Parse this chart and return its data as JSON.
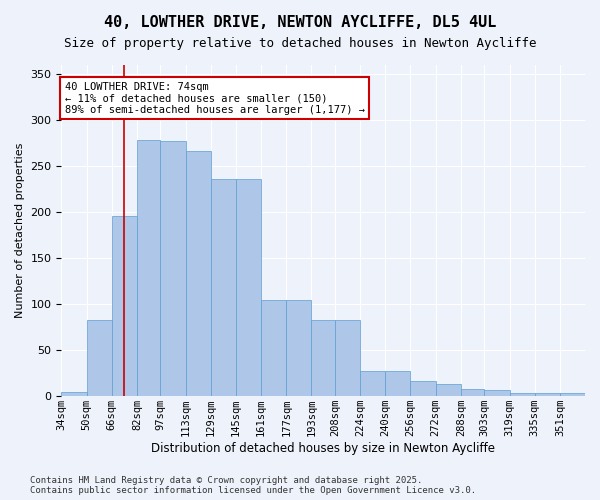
{
  "title_line1": "40, LOWTHER DRIVE, NEWTON AYCLIFFE, DL5 4UL",
  "title_line2": "Size of property relative to detached houses in Newton Aycliffe",
  "xlabel": "Distribution of detached houses by size in Newton Aycliffe",
  "ylabel": "Number of detached properties",
  "categories": [
    "34sqm",
    "50sqm",
    "66sqm",
    "82sqm",
    "97sqm",
    "113sqm",
    "129sqm",
    "145sqm",
    "161sqm",
    "177sqm",
    "193sqm",
    "208sqm",
    "224sqm",
    "240sqm",
    "256sqm",
    "272sqm",
    "288sqm",
    "303sqm",
    "319sqm",
    "335sqm",
    "351sqm"
  ],
  "bar_values": [
    5,
    83,
    196,
    278,
    277,
    267,
    236,
    236,
    104,
    104,
    83,
    83,
    27,
    27,
    16,
    13,
    8,
    7,
    3,
    3,
    3
  ],
  "bar_color": "#aec6e8",
  "bar_edge_color": "#5a9fd4",
  "vline_x": 74,
  "vline_color": "#cc0000",
  "box_text": "40 LOWTHER DRIVE: 74sqm\n← 11% of detached houses are smaller (150)\n89% of semi-detached houses are larger (1,177) →",
  "footer": "Contains HM Land Registry data © Crown copyright and database right 2025.\nContains public sector information licensed under the Open Government Licence v3.0.",
  "bg_color": "#eef2fb",
  "ylim": [
    0,
    360
  ],
  "yticks": [
    0,
    50,
    100,
    150,
    200,
    250,
    300,
    350
  ],
  "bin_edges": [
    34,
    50,
    66,
    82,
    97,
    113,
    129,
    145,
    161,
    177,
    193,
    208,
    224,
    240,
    256,
    272,
    288,
    303,
    319,
    335,
    351,
    367
  ]
}
